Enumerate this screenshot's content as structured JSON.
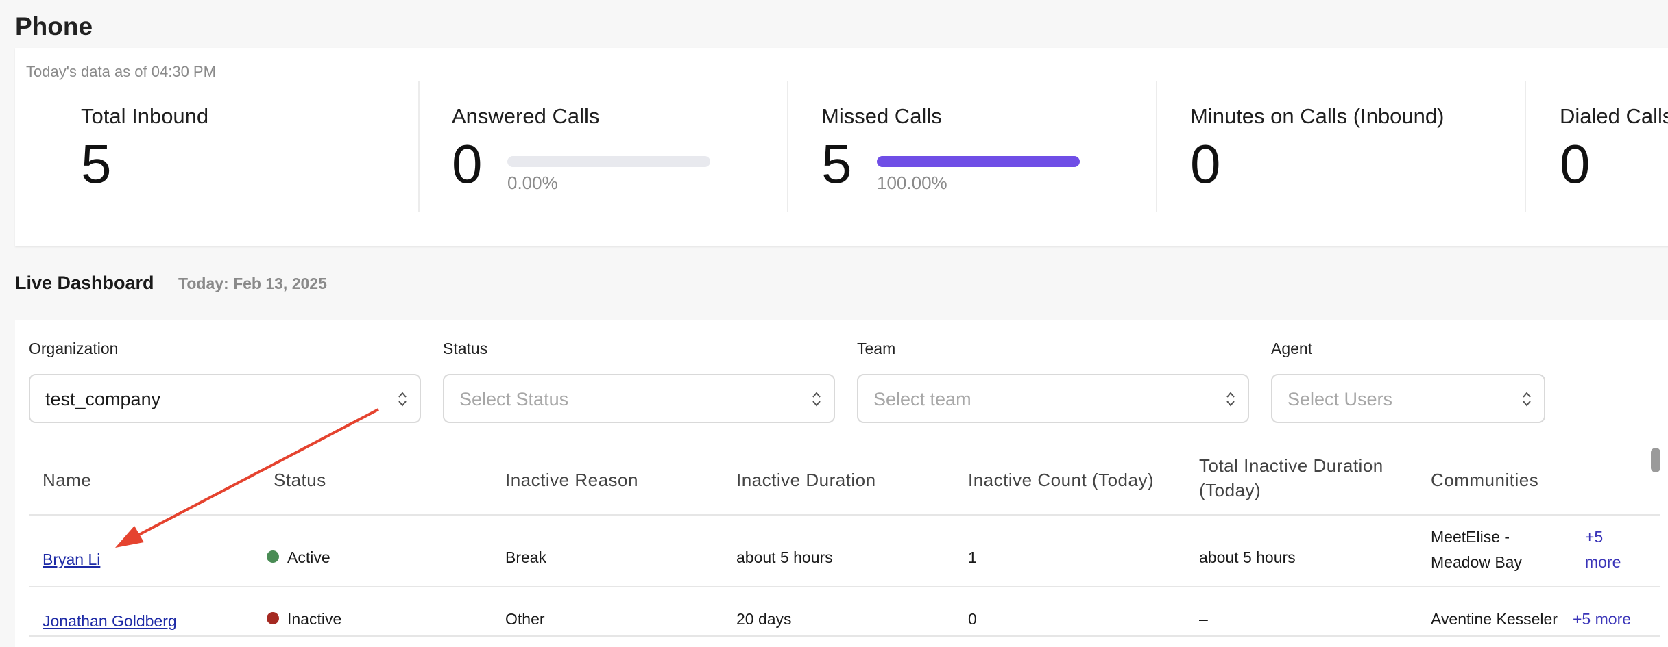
{
  "page": {
    "title": "Phone"
  },
  "stats": {
    "as_of": "Today's data as of 04:30 PM",
    "cards": [
      {
        "label": "Total Inbound",
        "value": "5"
      },
      {
        "label": "Answered Calls",
        "value": "0",
        "percent_label": "0.00%",
        "percent": 0
      },
      {
        "label": "Missed Calls",
        "value": "5",
        "percent_label": "100.00%",
        "percent": 100
      },
      {
        "label": "Minutes on Calls (Inbound)",
        "value": "0"
      },
      {
        "label": "Dialed Calls",
        "value": "0"
      }
    ],
    "bar_color": "#6f4ee6"
  },
  "live": {
    "title": "Live Dashboard",
    "date": "Today: Feb 13, 2025"
  },
  "filters": {
    "organization": {
      "label": "Organization",
      "value": "test_company"
    },
    "status": {
      "label": "Status",
      "placeholder": "Select Status"
    },
    "team": {
      "label": "Team",
      "placeholder": "Select team"
    },
    "agent": {
      "label": "Agent",
      "placeholder": "Select Users"
    }
  },
  "table": {
    "headers": {
      "name": "Name",
      "status": "Status",
      "inactive_reason": "Inactive Reason",
      "inactive_duration": "Inactive Duration",
      "inactive_count": "Inactive Count (Today)",
      "total_inactive": "Total Inactive Duration (Today)",
      "communities": "Communities"
    },
    "rows": [
      {
        "name": "Bryan Li",
        "status": "Active",
        "status_color": "#4a8c55",
        "inactive_reason": "Break",
        "inactive_duration": "about 5 hours",
        "inactive_count": "1",
        "total_inactive": "about 5 hours",
        "community_line1": "MeetElise -",
        "community_line2": "Meadow Bay",
        "more_line1": "+5",
        "more_line2": "more"
      },
      {
        "name": "Jonathan Goldberg",
        "status": "Inactive",
        "status_color": "#a52a22",
        "inactive_reason": "Other",
        "inactive_duration": "20 days",
        "inactive_count": "0",
        "total_inactive": "–",
        "community": "Aventine Kesseler",
        "more": "+5 more"
      }
    ]
  },
  "annotation": {
    "arrow_color": "#e5432f"
  }
}
